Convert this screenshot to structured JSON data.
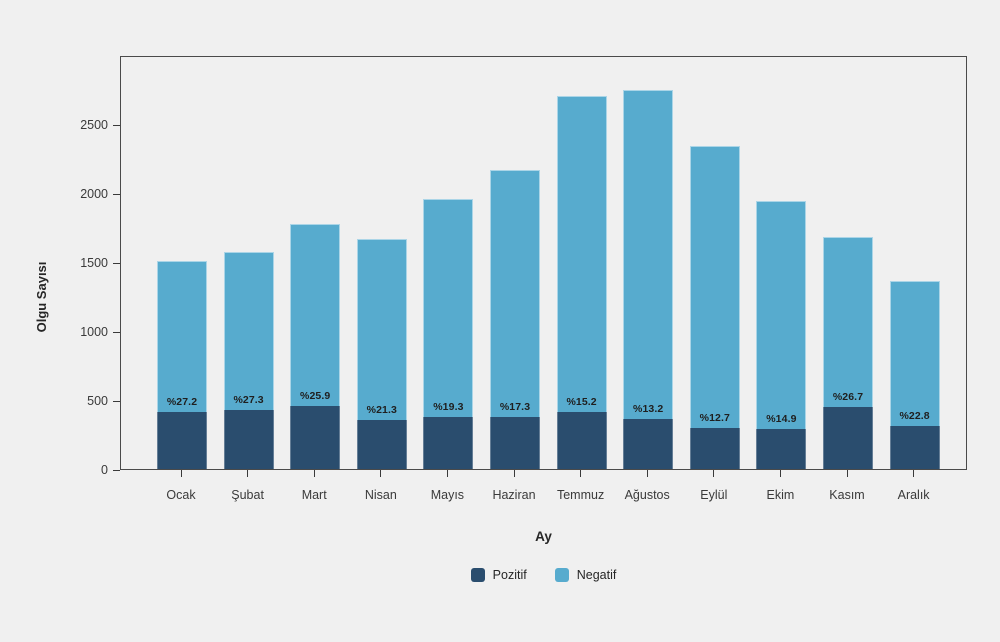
{
  "colors": {
    "background": "#f0f0f0",
    "frame": "#4a4a4a",
    "tick_text": "#3a3a3a",
    "label_text": "#1f1f1f",
    "pozitif": "#2a4d6e",
    "negatif": "#57abce"
  },
  "chart_data": {
    "type": "bar",
    "stacked": true,
    "title": "",
    "xlabel": "Ay",
    "ylabel": "Olgu Sayısı",
    "categories": [
      "Ocak",
      "Şubat",
      "Mart",
      "Nisan",
      "Mayıs",
      "Haziran",
      "Temmuz",
      "Ağustos",
      "Eylül",
      "Ekim",
      "Kasım",
      "Aralık"
    ],
    "series": [
      {
        "name": "Pozitif",
        "color": "#2a4d6e",
        "values": [
          410,
          430,
          460,
          355,
          378,
          374,
          410,
          363,
          298,
          289,
          448,
          310
        ]
      },
      {
        "name": "Negatif",
        "color": "#57abce",
        "values": [
          1100,
          1145,
          1316,
          1310,
          1580,
          1790,
          2290,
          2385,
          2045,
          1650,
          1230,
          1050
        ]
      }
    ],
    "totals": [
      1510,
      1575,
      1776,
      1665,
      1958,
      2164,
      2700,
      2748,
      2343,
      1939,
      1678,
      1360
    ],
    "bar_labels": [
      "%27.2",
      "%27.3",
      "%25.9",
      "%21.3",
      "%19.3",
      "%17.3",
      "%15.2",
      "%13.2",
      "%12.7",
      "%14.9",
      "%26.7",
      "%22.8"
    ],
    "ylim": [
      0,
      3000
    ],
    "yticks": [
      0,
      500,
      1000,
      1500,
      2000,
      2500
    ],
    "grid": false,
    "legend": {
      "position": "bottom",
      "entries": [
        {
          "label": "Pozitif",
          "color": "#2a4d6e"
        },
        {
          "label": "Negatif",
          "color": "#57abce"
        }
      ]
    }
  }
}
